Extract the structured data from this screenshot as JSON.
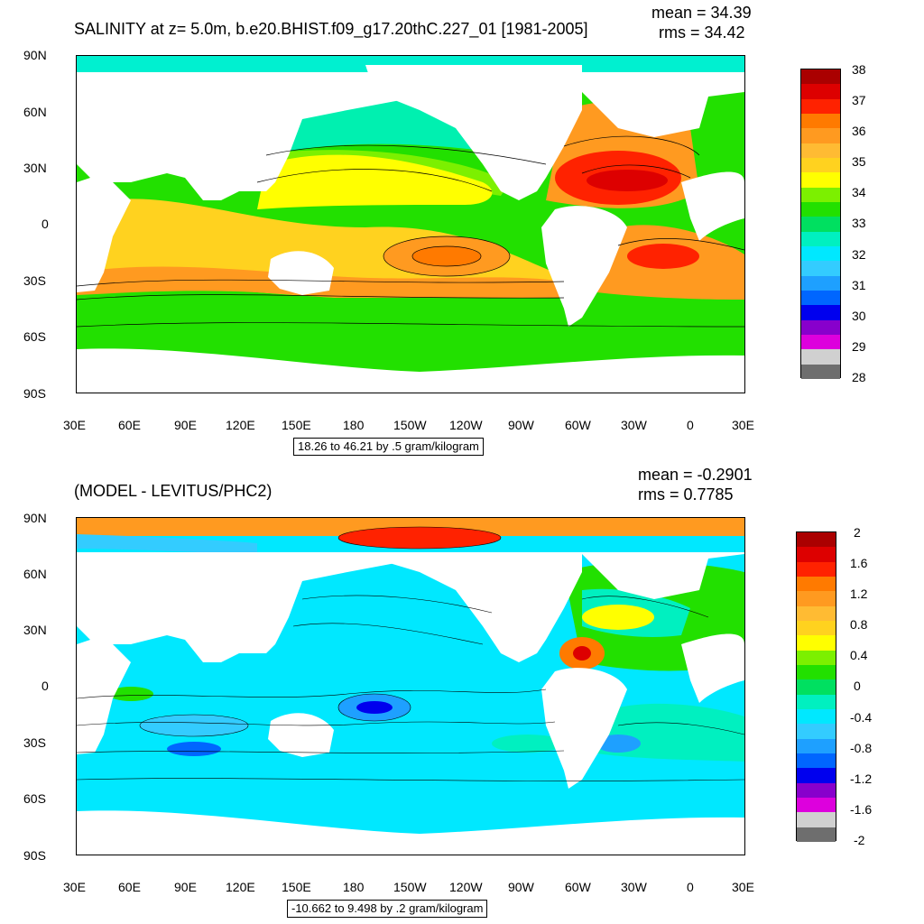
{
  "panels": [
    {
      "id": "top",
      "title": "SALINITY at z=   5.0m, b.e20.BHIST.f09_g17.20thC.227_01 [1981-2005]",
      "mean_text": "mean = 34.39",
      "rms_text": "rms = 34.42",
      "range_text": "18.26 to 46.21 by .5 gram/kilogram",
      "colorbar_labels": [
        "38",
        "37",
        "36",
        "35",
        "34",
        "33",
        "32",
        "31",
        "30",
        "29",
        "28"
      ],
      "colorbar_colors": [
        "#aa0000",
        "#dd0000",
        "#ff2200",
        "#ff7a00",
        "#ff9a20",
        "#ffbb33",
        "#ffd21f",
        "#ffff00",
        "#7cf000",
        "#22e000",
        "#00e060",
        "#00f0c0",
        "#00e8ff",
        "#33ccff",
        "#1ea0ff",
        "#0066ff",
        "#0000ee",
        "#8800cc",
        "#dd00dd",
        "#d0d0d0",
        "#6e6e6e"
      ]
    },
    {
      "id": "bottom",
      "title": "(MODEL - LEVITUS/PHC2)",
      "mean_text": "mean = -0.2901",
      "rms_text": "rms = 0.7785",
      "range_text": "-10.662 to 9.498 by .2 gram/kilogram",
      "colorbar_labels": [
        "2",
        "1.6",
        "1.2",
        "0.8",
        "0.4",
        "0",
        "-0.4",
        "-0.8",
        "-1.2",
        "-1.6",
        "-2"
      ],
      "colorbar_colors": [
        "#aa0000",
        "#dd0000",
        "#ff2200",
        "#ff7a00",
        "#ff9a20",
        "#ffbb33",
        "#ffd21f",
        "#ffff00",
        "#7cf000",
        "#22e000",
        "#00e060",
        "#00f0c0",
        "#00e8ff",
        "#33ccff",
        "#1ea0ff",
        "#0066ff",
        "#0000ee",
        "#8800cc",
        "#dd00dd",
        "#d0d0d0",
        "#6e6e6e"
      ]
    }
  ],
  "lat_labels": [
    "90N",
    "60N",
    "30N",
    "0",
    "30S",
    "60S",
    "90S"
  ],
  "lon_labels": [
    "30E",
    "60E",
    "90E",
    "120E",
    "150E",
    "180",
    "150W",
    "120W",
    "90W",
    "60W",
    "30W",
    "0",
    "30E"
  ],
  "colors": {
    "land": "#ffffff",
    "frame": "#000000",
    "contour": "#000000"
  }
}
